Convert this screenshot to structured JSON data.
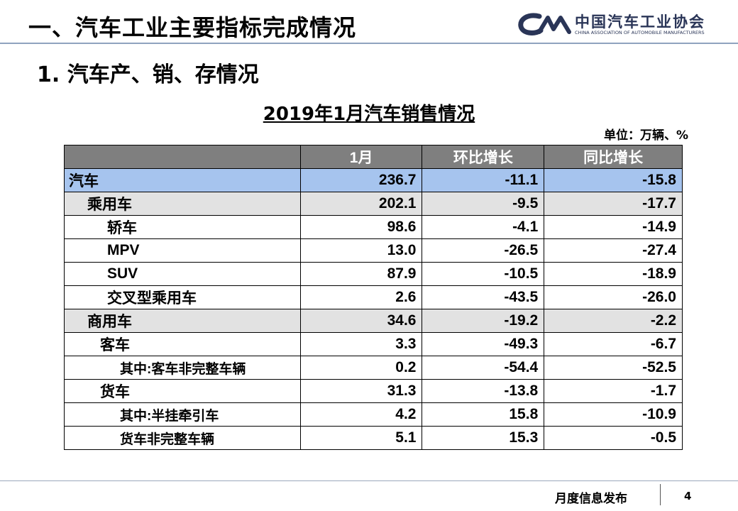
{
  "header": {
    "title": "一、汽车工业主要指标完成情况",
    "logo_cn": "中国汽车工业协会",
    "logo_en": "CHINA ASSOCIATION OF AUTOMOBILE MANUFACTURERS",
    "logo_icon": "caam-logo-icon"
  },
  "subtitle": "1. 汽车产、销、存情况",
  "table": {
    "title": "2019年1月汽车销售情况",
    "unit": "单位：万辆、%",
    "columns": [
      "",
      "1月",
      "环比增长",
      "同比增长"
    ],
    "rows": [
      {
        "label": "汽车",
        "level": 0,
        "jan": "236.7",
        "mom": "-11.1",
        "yoy": "-15.8"
      },
      {
        "label": "乘用车",
        "level": 1,
        "jan": "202.1",
        "mom": "-9.5",
        "yoy": "-17.7"
      },
      {
        "label": "轿车",
        "level": 2,
        "jan": "98.6",
        "mom": "-4.1",
        "yoy": "-14.9"
      },
      {
        "label": "MPV",
        "level": 2,
        "jan": "13.0",
        "mom": "-26.5",
        "yoy": "-27.4"
      },
      {
        "label": "SUV",
        "level": 2,
        "jan": "87.9",
        "mom": "-10.5",
        "yoy": "-18.9"
      },
      {
        "label": "交叉型乘用车",
        "level": 2,
        "jan": "2.6",
        "mom": "-43.5",
        "yoy": "-26.0"
      },
      {
        "label": "商用车",
        "level": 1,
        "jan": "34.6",
        "mom": "-19.2",
        "yoy": "-2.2"
      },
      {
        "label": "客车",
        "level": 3,
        "jan": "3.3",
        "mom": "-49.3",
        "yoy": "-6.7"
      },
      {
        "label": "其中:客车非完整车辆",
        "level": 4,
        "jan": "0.2",
        "mom": "-54.4",
        "yoy": "-52.5"
      },
      {
        "label": "货车",
        "level": 3,
        "jan": "31.3",
        "mom": "-13.8",
        "yoy": "-1.7"
      },
      {
        "label": "其中:半挂牵引车",
        "level": 4,
        "jan": "4.2",
        "mom": "15.8",
        "yoy": "-10.9"
      },
      {
        "label": "货车非完整车辆",
        "level": 4,
        "jan": "5.1",
        "mom": "15.3",
        "yoy": "-0.5"
      }
    ]
  },
  "footer": {
    "text": "月度信息发布",
    "page": "4"
  },
  "colors": {
    "header_bg": "#7f7f7f",
    "total_row_bg": "#a6c4ee",
    "subtotal_row_bg": "#e2e2e2",
    "logo_color": "#2a3557",
    "rule_color": "#8fa3bf"
  }
}
